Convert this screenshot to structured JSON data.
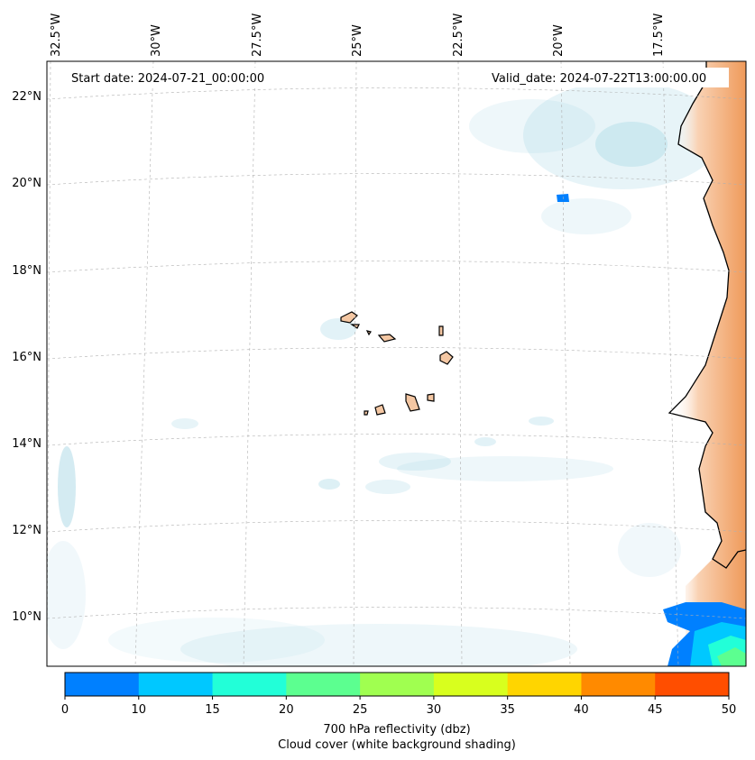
{
  "map": {
    "start_date": "Start date: 2024-07-21_00:00:00",
    "valid_date": "Valid_date: 2024-07-22T13:00:00.00",
    "lon_labels": [
      "32.5°W",
      "30°W",
      "27.5°W",
      "25°W",
      "22.5°W",
      "20°W",
      "17.5°W"
    ],
    "lat_labels": [
      "22°N",
      "20°N",
      "18°N",
      "16°N",
      "14°N",
      "12°N",
      "10°N"
    ],
    "land_color": "#f4a46a",
    "coast_color": "#000000",
    "cloud_color": "#9fd3e3",
    "grid_style": "dashed-light-gray"
  },
  "colorbar": {
    "ticks": [
      "0",
      "10",
      "15",
      "20",
      "25",
      "30",
      "35",
      "40",
      "45",
      "50"
    ],
    "colors": [
      "#0080ff",
      "#00c8ff",
      "#22ffd8",
      "#5cff90",
      "#a0ff50",
      "#d8ff1e",
      "#ffd500",
      "#ff8a00",
      "#ff4e00"
    ],
    "label_line1": "700 hPa reflectivity (dbz)",
    "label_line2": "Cloud cover (white background shading)"
  }
}
